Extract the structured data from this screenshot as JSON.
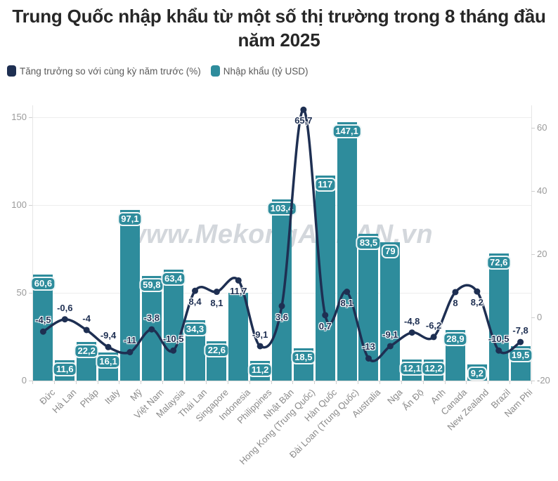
{
  "title": "Trung Quốc nhập khẩu từ một số thị trường trong 8 tháng đầu năm 2025",
  "legend": {
    "growth": {
      "label": "Tăng trưởng so với cùng kỳ năm trước (%)",
      "color": "#1e2f52"
    },
    "imports": {
      "label": "Nhập khẩu (tỷ USD)",
      "color": "#2e8c9c"
    }
  },
  "watermark": "www.MekongASEAN.vn",
  "colors": {
    "bar": "#2e8c9c",
    "line": "#1e2f52",
    "axis_text": "#9a9a9a",
    "title_text": "#272727"
  },
  "chart_data": {
    "type": "bar",
    "subtype": "bar+line dual-axis combo",
    "title": "Trung Quốc nhập khẩu từ một số thị trường trong 8 tháng đầu năm 2025",
    "legend_position": "top-left",
    "grid": "horizontal",
    "categories": [
      "Đức",
      "Hà Lan",
      "Pháp",
      "Italy",
      "Mỹ",
      "Việt Nam",
      "Malaysia",
      "Thái Lan",
      "Singapore",
      "Indonesia",
      "Philippines",
      "Nhật Bản",
      "Hong Kong (Trung Quốc)",
      "Hàn Quốc",
      "Đài Loan (Trung Quốc)",
      "Australia",
      "Nga",
      "Ấn Độ",
      "Anh",
      "Canada",
      "New Zealand",
      "Brazil",
      "Nam Phi"
    ],
    "series": [
      {
        "name": "Nhập khẩu (tỷ USD)",
        "type": "bar",
        "y_axis": "left",
        "unit": "tỷ USD",
        "color": "#2e8c9c",
        "values": [
          60.6,
          11.6,
          22.2,
          16.1,
          97.1,
          59.8,
          63.4,
          34.3,
          22.6,
          50,
          11.2,
          103.4,
          18.5,
          117,
          147.1,
          83.5,
          79,
          12.1,
          12.2,
          28.9,
          9.2,
          72.6,
          19.5
        ],
        "labels": [
          "60,6",
          "11,6",
          "22,2",
          "16,1",
          "97,1",
          "59,8",
          "63,4",
          "34,3",
          "22,6",
          "",
          "11,2",
          "103,4",
          "18,5",
          "117",
          "147,1",
          "83,5",
          "79",
          "12,1",
          "12,2",
          "28,9",
          "9,2",
          "72,6",
          "19,5"
        ]
      },
      {
        "name": "Tăng trưởng so với cùng kỳ năm trước (%)",
        "type": "line",
        "y_axis": "right",
        "unit": "%",
        "color": "#1e2f52",
        "values": [
          -4.5,
          -0.6,
          -4,
          -9.4,
          -11,
          -3.8,
          -10.5,
          8.4,
          8.1,
          11.7,
          -9.1,
          3.6,
          65.7,
          0.7,
          8.1,
          -13,
          -9.1,
          -4.8,
          -6.2,
          8,
          8.2,
          -10.5,
          -7.8
        ],
        "labels": [
          "-4,5",
          "-0,6",
          "-4",
          "-9,4",
          "-11",
          "-3,8",
          "-10,5",
          "8,4",
          "8,1",
          "11,7",
          "-9,1",
          "3,6",
          "65,7",
          "0,7",
          "8,1",
          "-13",
          "-9,1",
          "-4,8",
          "-6,2",
          "8",
          "8,2",
          "-10,5",
          "-7,8"
        ]
      }
    ],
    "left_axis": {
      "tick_labels": [
        "0",
        "50",
        "100",
        "150"
      ],
      "tick_values": [
        0,
        50,
        100,
        150
      ],
      "min": 0,
      "max": 156.8
    },
    "right_axis": {
      "tick_labels": [
        "-20",
        "0",
        "20",
        "40",
        "60"
      ],
      "tick_values": [
        -20,
        0,
        20,
        40,
        60
      ],
      "min": -20,
      "max": 67.1
    }
  }
}
